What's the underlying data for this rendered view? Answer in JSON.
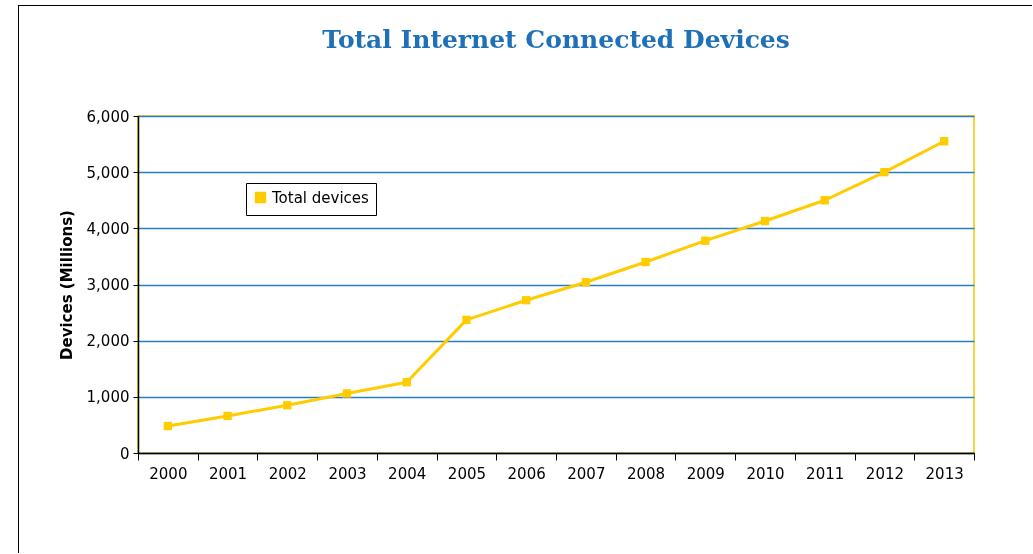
{
  "chart_data": {
    "type": "line",
    "title": "Total Internet Connected Devices",
    "ylabel": "Devices (Millions)",
    "categories": [
      "2000",
      "2001",
      "2002",
      "2003",
      "2004",
      "2005",
      "2006",
      "2007",
      "2008",
      "2009",
      "2010",
      "2011",
      "2012",
      "2013"
    ],
    "series": [
      {
        "name": "Total devices",
        "color": "#ffcc00",
        "values": [
          480,
          660,
          850,
          1060,
          1260,
          2370,
          2720,
          3040,
          3400,
          3780,
          4130,
          4500,
          5000,
          5550
        ]
      }
    ],
    "ylim": [
      0,
      6000
    ],
    "yticks": [
      0,
      {
        "value": 1000,
        "label": "1,000"
      },
      {
        "value": 2000,
        "label": "2,000"
      },
      {
        "value": 3000,
        "label": "3,000"
      },
      {
        "value": 4000,
        "label": "4,000"
      },
      {
        "value": 5000,
        "label": "5,000"
      },
      {
        "value": 6000,
        "label": "6,000"
      }
    ],
    "grid": "y",
    "legend": "top left",
    "marker": "square",
    "line_style": "solid"
  }
}
